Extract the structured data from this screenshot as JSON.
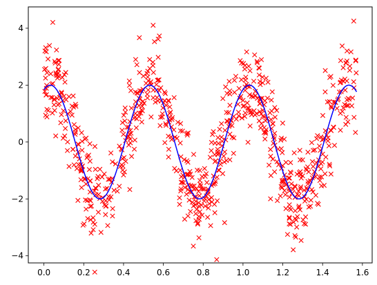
{
  "chart_data": {
    "type": "scatter",
    "title": "",
    "xlabel": "",
    "ylabel": "",
    "xlim": [
      -0.0785,
      1.649
    ],
    "ylim": [
      -4.25,
      4.75
    ],
    "xticks": [
      0.0,
      0.2,
      0.4,
      0.6,
      0.8,
      1.0,
      1.2,
      1.4,
      1.6
    ],
    "xtick_labels": [
      "0.0",
      "0.2",
      "0.4",
      "0.6",
      "0.8",
      "1.0",
      "1.2",
      "1.4",
      "1.6"
    ],
    "yticks": [
      -4,
      -2,
      0,
      2,
      4
    ],
    "ytick_labels": [
      "−4",
      "−2",
      "0",
      "2",
      "4"
    ],
    "grid": false,
    "scatter_series": {
      "marker": "x",
      "color": "#ff0000",
      "count": 800,
      "x_range": [
        0.0,
        1.5708
      ],
      "model": "y = 2*cos(4*pi*x - 0.4) + noise",
      "amplitude": 2.0,
      "frequency": 2.0,
      "phase": -0.4,
      "noise_sd": 0.8
    },
    "line_series": {
      "color": "#0000ff",
      "model": "y = 2*cos(4*pi*x - 0.4)",
      "x_range": [
        0.0,
        1.5708
      ],
      "amplitude": 2.0,
      "frequency": 2.0,
      "phase": -0.4
    }
  }
}
